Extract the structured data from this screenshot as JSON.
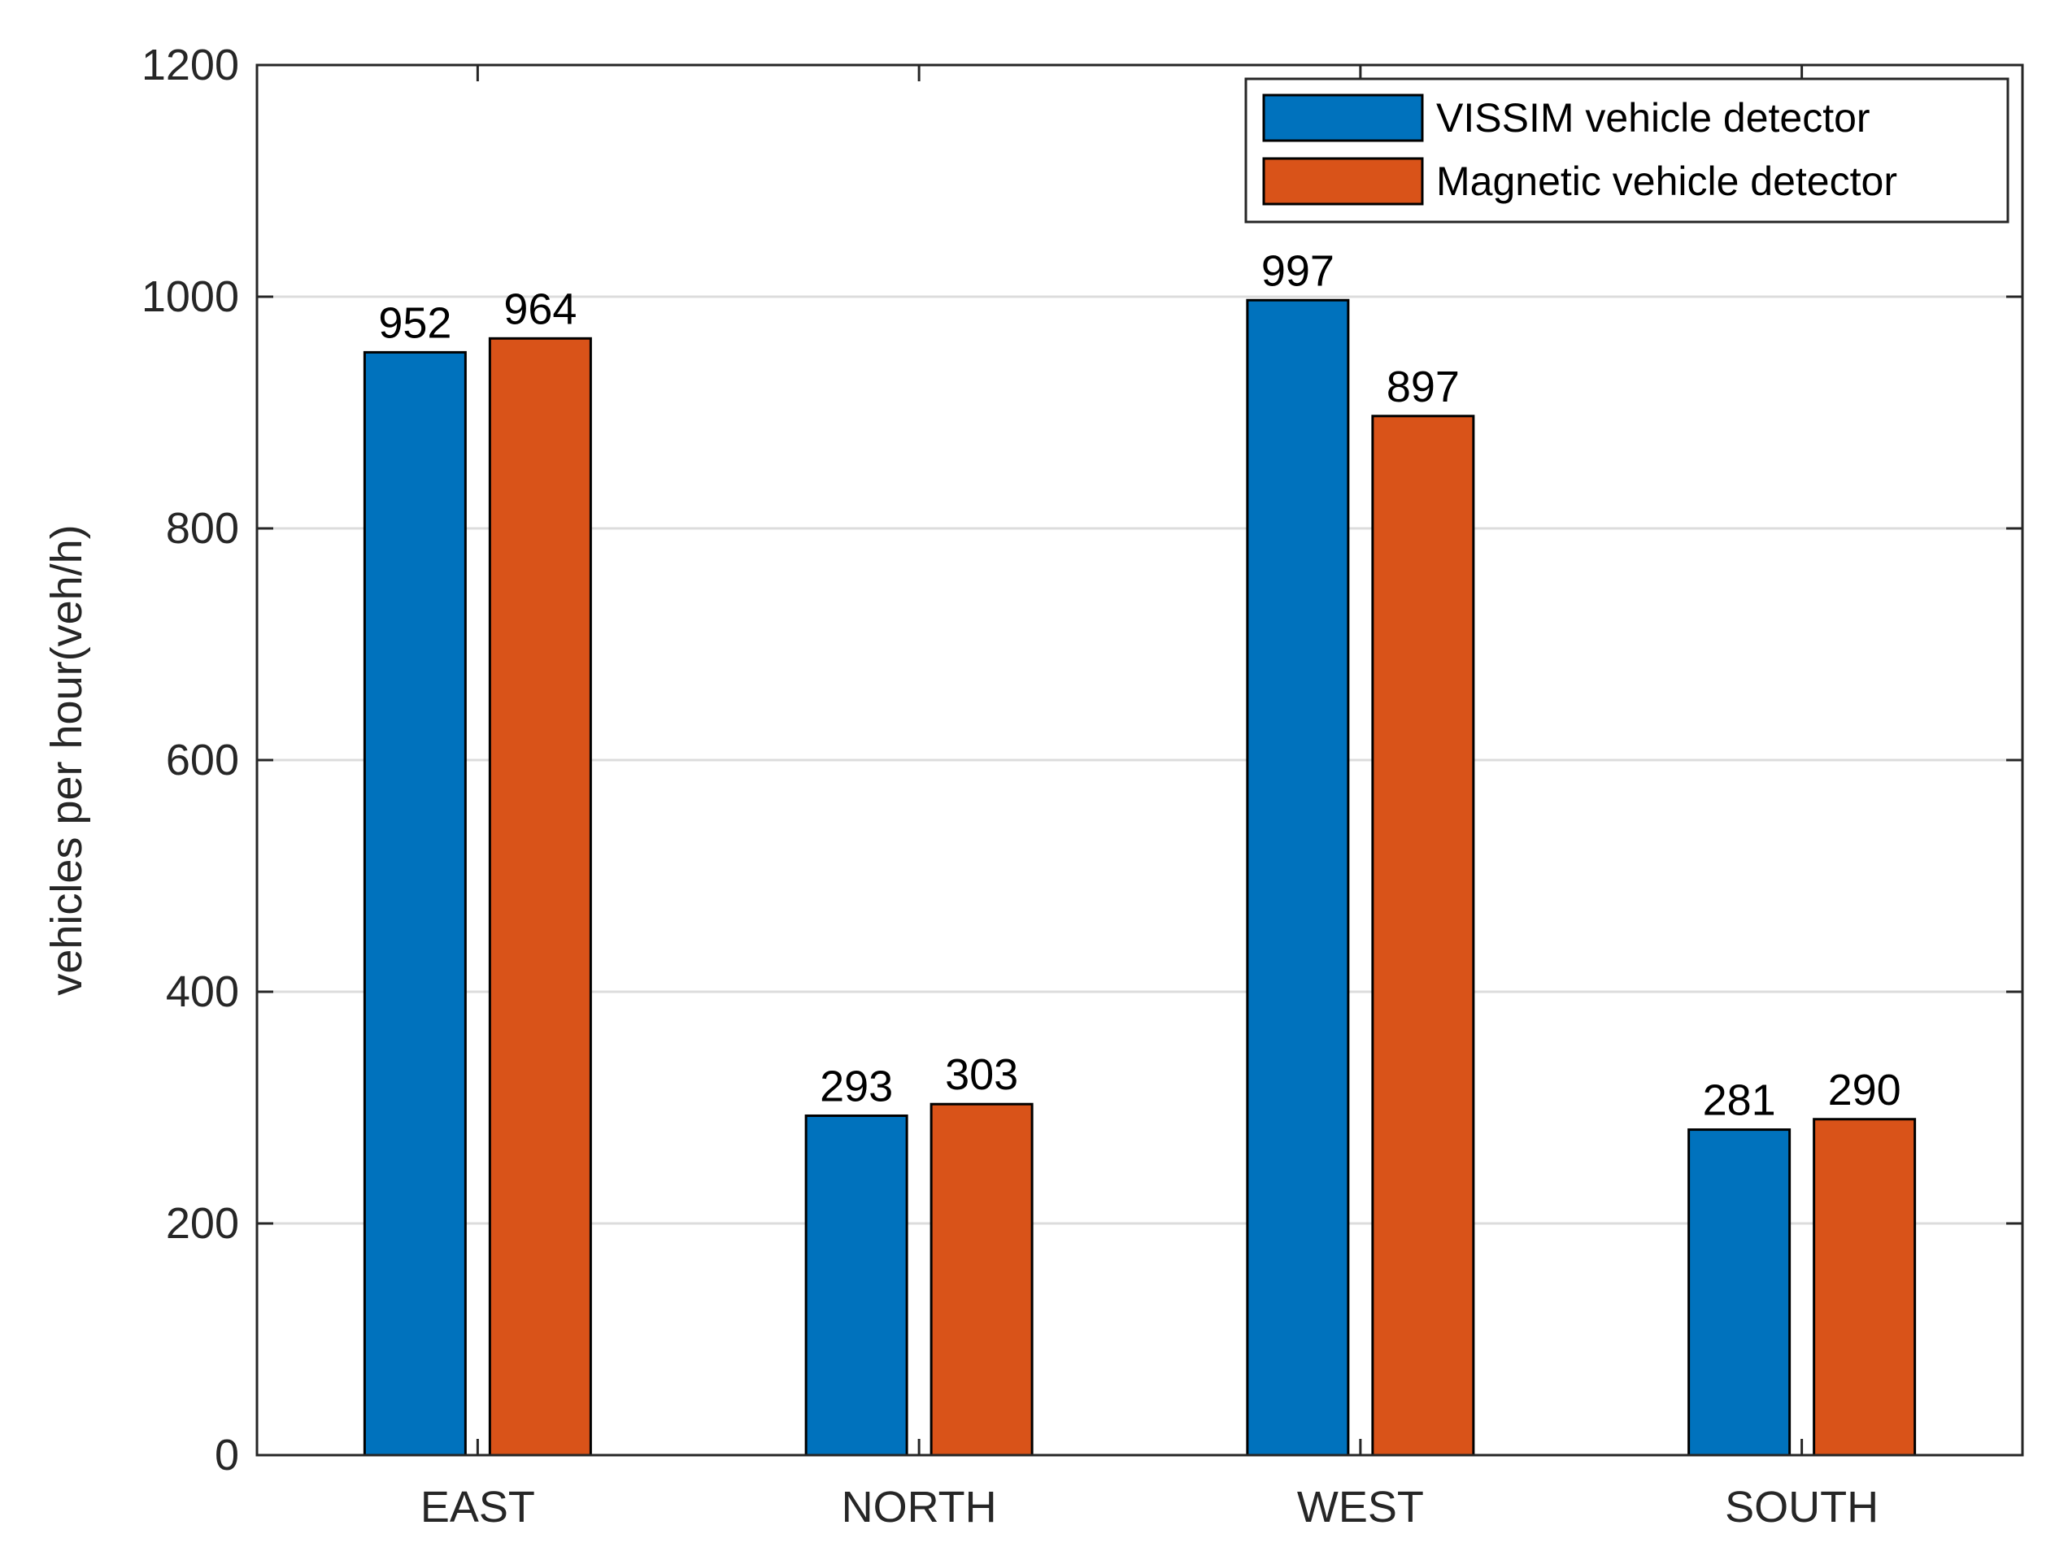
{
  "chart_data": {
    "type": "bar",
    "title": "",
    "xlabel": "",
    "ylabel": "vehicles per hour(veh/h)",
    "categories": [
      "EAST",
      "NORTH",
      "WEST",
      "SOUTH"
    ],
    "series": [
      {
        "name": "VISSIM vehicle detector",
        "color": "#0072BD",
        "values": [
          952,
          293,
          997,
          281
        ]
      },
      {
        "name": "Magnetic vehicle detector",
        "color": "#D95319",
        "values": [
          964,
          303,
          897,
          290
        ]
      }
    ],
    "ylim": [
      0,
      1200
    ],
    "yticks": [
      0,
      200,
      400,
      600,
      800,
      1000,
      1200
    ],
    "grid": true,
    "legend_position": "top-right"
  }
}
